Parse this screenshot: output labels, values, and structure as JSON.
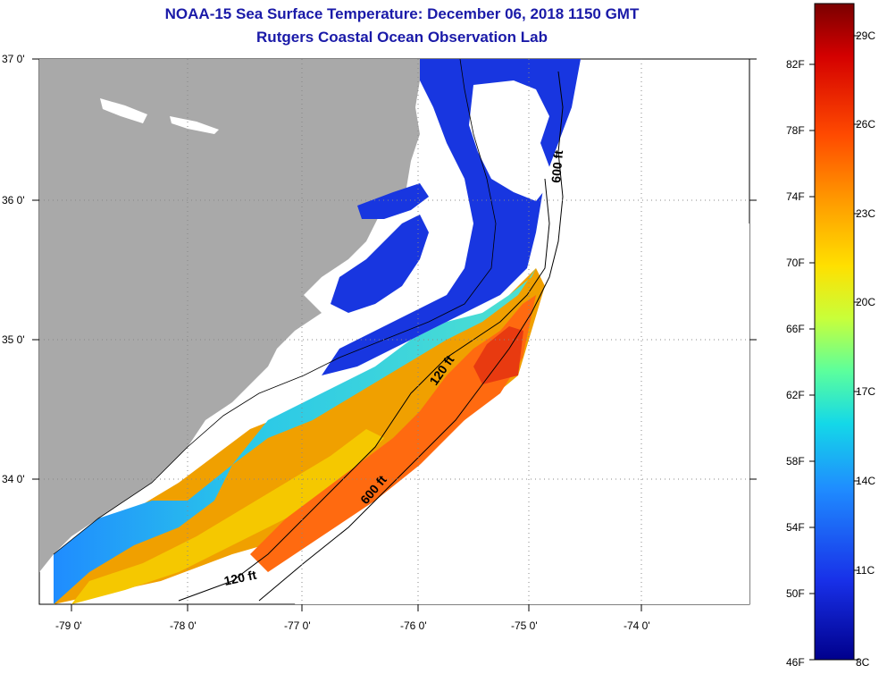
{
  "title": "NOAA-15 Sea Surface Temperature:  December 06, 2018 1150 GMT",
  "subtitle": "Rutgers Coastal Ocean Observation Lab",
  "lat_labels": [
    "37 0'",
    "36 0'",
    "35 0'",
    "34 0'"
  ],
  "lon_labels": [
    "-79 0'",
    "-78 0'",
    "-77 0'",
    "-76 0'",
    "-75 0'",
    "-74 0'"
  ],
  "colorbar": {
    "fahrenheit": [
      "82F",
      "78F",
      "74F",
      "70F",
      "66F",
      "62F",
      "58F",
      "54F",
      "50F",
      "46F"
    ],
    "celsius": [
      "29C",
      "26C",
      "23C",
      "20C",
      "17C",
      "14C",
      "11C",
      "8C"
    ],
    "colors": [
      "#7a0000",
      "#d40000",
      "#ff4a00",
      "#ff9a00",
      "#ffe000",
      "#c8ff3a",
      "#5cff9c",
      "#14d8e8",
      "#1f8cff",
      "#1830e8",
      "#00008c"
    ]
  },
  "contours": [
    "600 ft",
    "120 ft",
    "600 ft",
    "120 ft"
  ],
  "colors": {
    "land": "#a9a9a9",
    "no_data": "#ffffff",
    "title": "#1a1aa8"
  }
}
